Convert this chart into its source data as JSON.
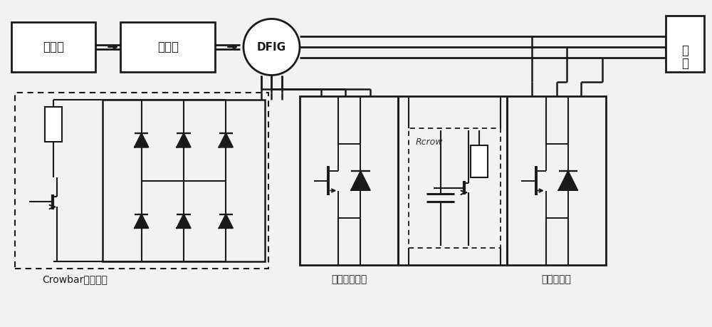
{
  "bg_color": "#ffffff",
  "line_color": "#1a1a1a",
  "labels": {
    "turbine": "汽轮机",
    "gearbox": "变速箱",
    "dfig": "DFIG",
    "grid_line1": "电",
    "grid_line2": "网",
    "crowbar_label": "Crowbar保护电路",
    "rotor_converter": "转子侧逆变器",
    "grid_converter": "网侧逆变器",
    "rcrow": "Rcrow"
  },
  "font_size_chinese": 12,
  "font_size_label": 10,
  "font_size_rcrow": 9,
  "font_size_dfig": 11
}
